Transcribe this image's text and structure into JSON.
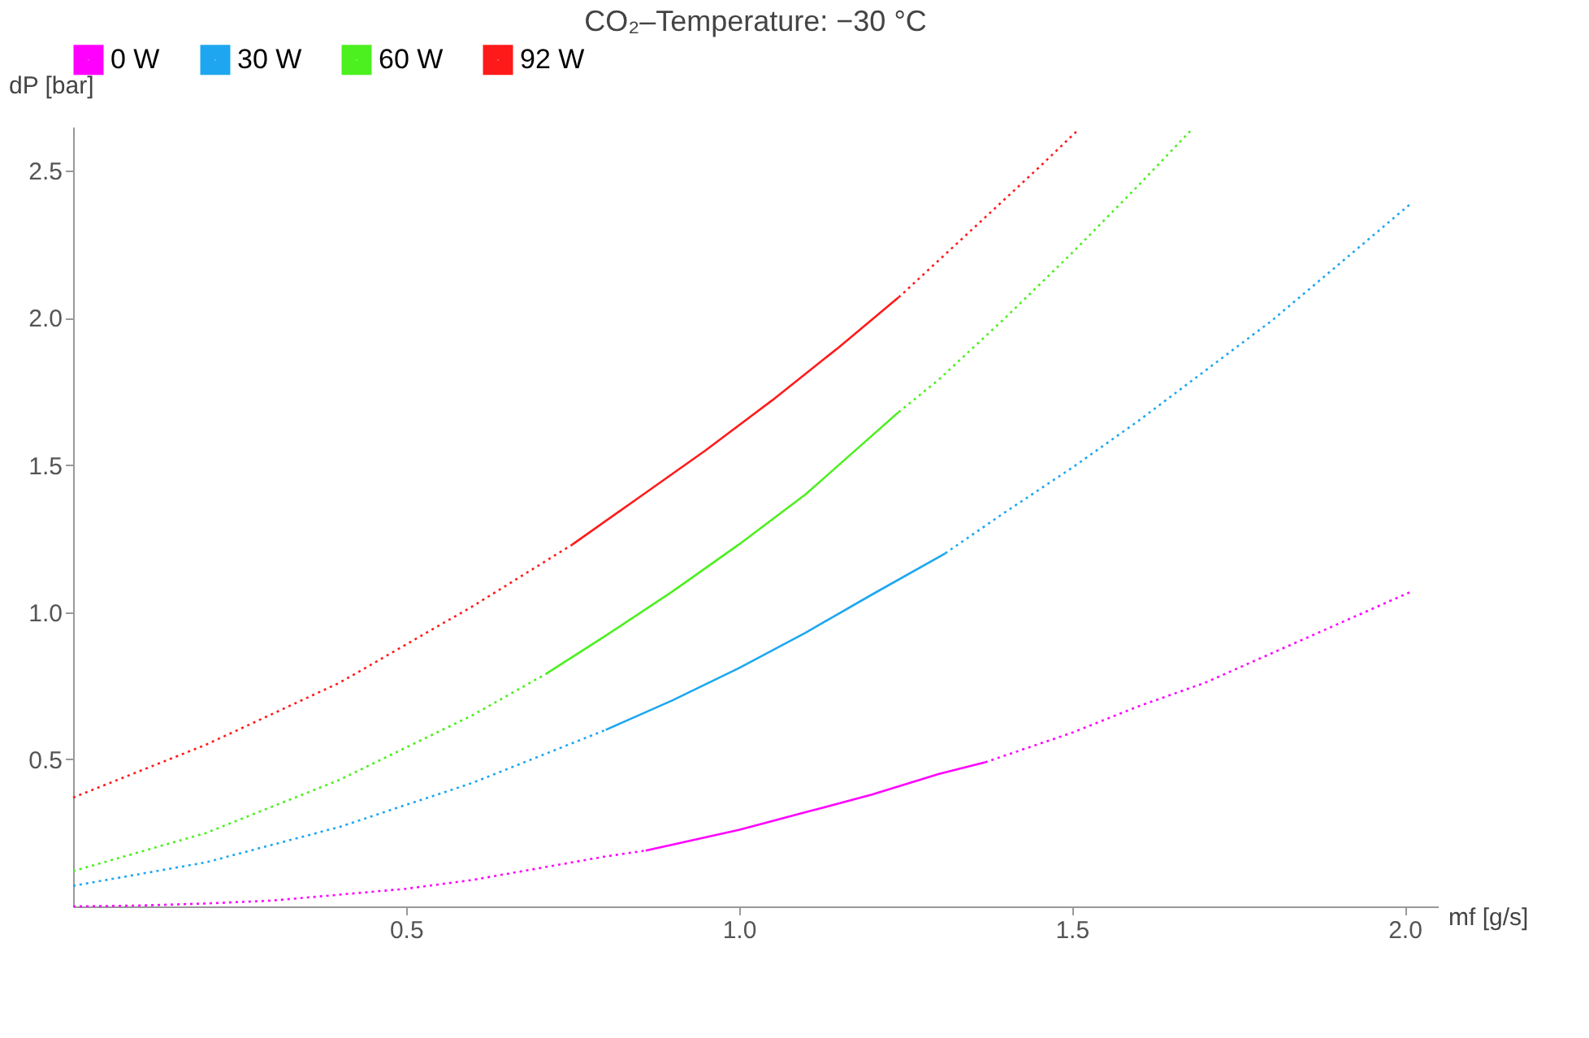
{
  "chart_data": {
    "type": "line",
    "title": "CO₂–Temperature: −30 °C",
    "xlabel": "mf [g/s]",
    "ylabel": "dP [bar]",
    "xlim": [
      0,
      2.05
    ],
    "ylim": [
      0,
      2.65
    ],
    "xticks": [
      0.5,
      {
        "value": 1,
        "label": "1.0"
      },
      1.5,
      {
        "value": 2,
        "label": "2.0"
      }
    ],
    "yticks": [
      0.5,
      {
        "value": 1,
        "label": "1.0"
      },
      1.5,
      {
        "value": 2,
        "label": "2.0"
      },
      2.5
    ],
    "grid": false,
    "legend": "top",
    "marker": "none",
    "series": [
      {
        "color": "#ff00ff",
        "line_style": "dotted",
        "x": [
          0,
          0.1,
          0.2,
          0.3,
          0.4,
          0.5,
          0.6,
          0.7,
          0.8,
          0.86
        ],
        "values": [
          0,
          0.003,
          0.01,
          0.02,
          0.04,
          0.06,
          0.09,
          0.13,
          0.17,
          0.19
        ]
      },
      {
        "name": "0 W",
        "color": "#ff00ff",
        "line_style": "solid",
        "x": [
          0.86,
          0.9,
          1.0,
          1.1,
          1.2,
          1.3,
          1.37
        ],
        "values": [
          0.19,
          0.21,
          0.26,
          0.32,
          0.38,
          0.45,
          0.49
        ]
      },
      {
        "color": "#ff00ff",
        "line_style": "dotted",
        "x": [
          1.37,
          1.5,
          1.6,
          1.7,
          1.8,
          1.9,
          2.01
        ],
        "values": [
          0.49,
          0.59,
          0.68,
          0.76,
          0.86,
          0.96,
          1.07
        ]
      },
      {
        "color": "#1ea7f0",
        "line_style": "dotted",
        "x": [
          0,
          0.2,
          0.4,
          0.6,
          0.8
        ],
        "values": [
          0.07,
          0.15,
          0.27,
          0.42,
          0.6
        ]
      },
      {
        "name": "30 W",
        "color": "#1ea7f0",
        "line_style": "solid",
        "x": [
          0.8,
          0.9,
          1.0,
          1.1,
          1.2,
          1.31
        ],
        "values": [
          0.6,
          0.7,
          0.81,
          0.93,
          1.06,
          1.2
        ]
      },
      {
        "color": "#1ea7f0",
        "line_style": "dotted",
        "x": [
          1.31,
          1.4,
          1.5,
          1.6,
          1.7,
          1.8,
          1.9,
          2.01
        ],
        "values": [
          1.2,
          1.34,
          1.49,
          1.65,
          1.82,
          1.99,
          2.18,
          2.39
        ]
      },
      {
        "color": "#4cf01e",
        "line_style": "dotted",
        "x": [
          0,
          0.2,
          0.4,
          0.6,
          0.71
        ],
        "values": [
          0.12,
          0.25,
          0.43,
          0.65,
          0.79
        ]
      },
      {
        "name": "60 W",
        "color": "#4cf01e",
        "line_style": "solid",
        "x": [
          0.71,
          0.8,
          0.9,
          1.0,
          1.1,
          1.24
        ],
        "values": [
          0.79,
          0.92,
          1.07,
          1.23,
          1.4,
          1.68
        ]
      },
      {
        "color": "#4cf01e",
        "line_style": "dotted",
        "x": [
          1.24,
          1.3,
          1.4,
          1.5,
          1.6,
          1.68
        ],
        "values": [
          1.68,
          1.79,
          2.0,
          2.22,
          2.45,
          2.64
        ]
      },
      {
        "color": "#ff1a1a",
        "line_style": "dotted",
        "x": [
          0,
          0.2,
          0.4,
          0.6,
          0.75
        ],
        "values": [
          0.37,
          0.55,
          0.76,
          1.02,
          1.23
        ]
      },
      {
        "name": "92 W",
        "color": "#ff1a1a",
        "line_style": "solid",
        "x": [
          0.75,
          0.85,
          0.95,
          1.05,
          1.15,
          1.24
        ],
        "values": [
          1.23,
          1.39,
          1.55,
          1.72,
          1.9,
          2.07
        ]
      },
      {
        "color": "#ff1a1a",
        "line_style": "dotted",
        "x": [
          1.24,
          1.35,
          1.45,
          1.51
        ],
        "values": [
          2.07,
          2.3,
          2.51,
          2.64
        ]
      }
    ]
  }
}
